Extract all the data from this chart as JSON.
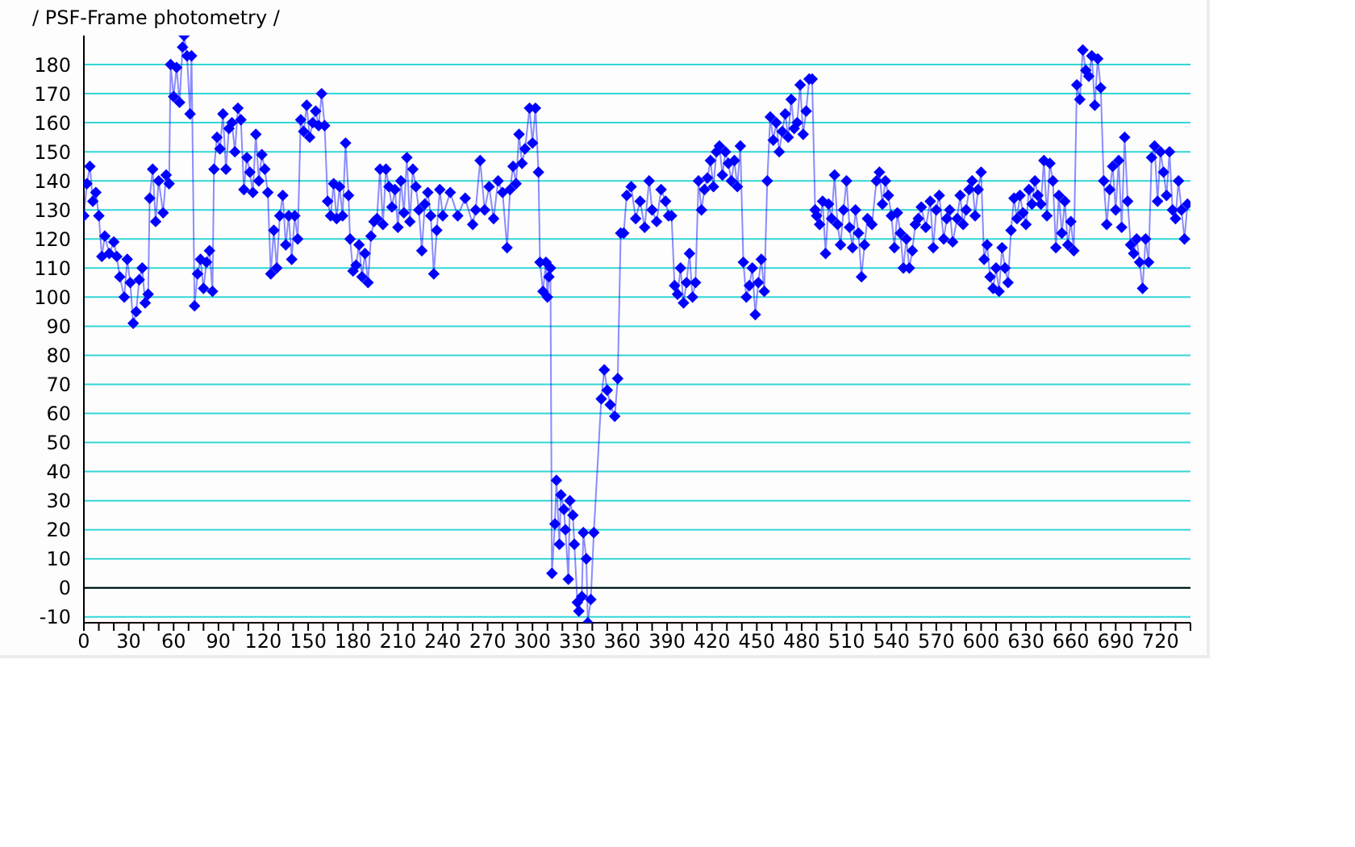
{
  "chart_data": {
    "type": "line",
    "title": "/ PSF-Frame photometry /",
    "series": [
      {
        "color": "#0000ff",
        "x": [
          0,
          2,
          4,
          6,
          8,
          10,
          12,
          14,
          17,
          20,
          22,
          24,
          27,
          29,
          31,
          33,
          35,
          37,
          39,
          41,
          43,
          44,
          46,
          48,
          50,
          53,
          55,
          57,
          58,
          60,
          62,
          64,
          66,
          67,
          69,
          71,
          72,
          74,
          76,
          78,
          80,
          82,
          84,
          86,
          87,
          89,
          91,
          93,
          95,
          97,
          99,
          101,
          103,
          105,
          107,
          109,
          111,
          113,
          115,
          117,
          119,
          121,
          123,
          125,
          127,
          129,
          131,
          133,
          135,
          137,
          139,
          141,
          143,
          145,
          147,
          149,
          151,
          153,
          155,
          157,
          159,
          161,
          163,
          165,
          167,
          169,
          171,
          173,
          175,
          177,
          178,
          180,
          182,
          184,
          186,
          188,
          190,
          192,
          194,
          196,
          198,
          200,
          202,
          204,
          206,
          208,
          210,
          212,
          214,
          216,
          218,
          220,
          222,
          224,
          226,
          228,
          230,
          232,
          234,
          236,
          238,
          240,
          245,
          250,
          255,
          260,
          262,
          265,
          268,
          271,
          274,
          277,
          280,
          283,
          285,
          287,
          289,
          291,
          293,
          295,
          298,
          300,
          302,
          304,
          305,
          307,
          309,
          310,
          311,
          312,
          313,
          315,
          316,
          318,
          319,
          321,
          322,
          324,
          325,
          327,
          328,
          330,
          331,
          333,
          334,
          336,
          337,
          339,
          341,
          346,
          348,
          350,
          352,
          355,
          357,
          359,
          361,
          363,
          366,
          369,
          372,
          375,
          378,
          380,
          383,
          386,
          389,
          391,
          393,
          395,
          397,
          399,
          401,
          403,
          405,
          407,
          409,
          411,
          413,
          415,
          417,
          419,
          421,
          423,
          425,
          427,
          429,
          431,
          433,
          435,
          437,
          439,
          441,
          443,
          445,
          447,
          449,
          451,
          453,
          455,
          457,
          459,
          461,
          463,
          465,
          467,
          469,
          471,
          473,
          475,
          477,
          479,
          481,
          483,
          485,
          487,
          489,
          490,
          492,
          494,
          496,
          498,
          500,
          502,
          504,
          506,
          508,
          510,
          512,
          514,
          516,
          518,
          520,
          522,
          524,
          527,
          530,
          532,
          534,
          536,
          538,
          540,
          542,
          544,
          546,
          548,
          550,
          552,
          554,
          556,
          558,
          560,
          563,
          566,
          568,
          570,
          572,
          575,
          577,
          579,
          581,
          584,
          586,
          588,
          590,
          592,
          594,
          596,
          598,
          600,
          602,
          604,
          606,
          608,
          610,
          612,
          614,
          616,
          618,
          620,
          622,
          624,
          626,
          628,
          630,
          632,
          634,
          636,
          638,
          640,
          642,
          644,
          646,
          648,
          650,
          652,
          654,
          656,
          658,
          660,
          662,
          664,
          666,
          668,
          670,
          672,
          674,
          676,
          678,
          680,
          682,
          684,
          686,
          688,
          690,
          692,
          694,
          696,
          698,
          700,
          702,
          704,
          706,
          708,
          710,
          712,
          714,
          716,
          718,
          720,
          722,
          724,
          726,
          728,
          730,
          732,
          734,
          736,
          738
        ],
        "values": [
          128,
          139,
          145,
          133,
          136,
          128,
          114,
          121,
          115,
          119,
          114,
          107,
          100,
          113,
          105,
          91,
          95,
          106,
          110,
          98,
          101,
          134,
          144,
          126,
          140,
          129,
          142,
          139,
          180,
          169,
          179,
          167,
          186,
          190,
          183,
          163,
          183,
          97,
          108,
          113,
          103,
          112,
          116,
          102,
          144,
          155,
          151,
          163,
          144,
          158,
          160,
          150,
          165,
          161,
          137,
          148,
          143,
          136,
          156,
          140,
          149,
          144,
          136,
          108,
          123,
          110,
          128,
          135,
          118,
          128,
          113,
          128,
          120,
          161,
          157,
          166,
          155,
          160,
          164,
          159,
          170,
          159,
          133,
          128,
          139,
          127,
          138,
          128,
          153,
          135,
          120,
          109,
          111,
          118,
          107,
          115,
          105,
          121,
          126,
          127,
          144,
          125,
          144,
          138,
          131,
          137,
          124,
          140,
          129,
          148,
          126,
          144,
          138,
          130,
          116,
          132,
          136,
          128,
          108,
          123,
          137,
          128,
          136,
          128,
          134,
          125,
          130,
          147,
          130,
          138,
          127,
          140,
          136,
          117,
          137,
          145,
          139,
          156,
          146,
          151,
          165,
          153,
          165,
          143,
          112,
          102,
          112,
          100,
          107,
          110,
          5,
          22,
          37,
          15,
          32,
          27,
          20,
          3,
          30,
          25,
          15,
          -5,
          -8,
          -3,
          19,
          10,
          -12,
          -4,
          19,
          65,
          75,
          68,
          63,
          59,
          72,
          122,
          122,
          135,
          138,
          127,
          133,
          124,
          140,
          130,
          126,
          137,
          133,
          128,
          128,
          104,
          101,
          110,
          98,
          105,
          115,
          100,
          105,
          140,
          130,
          137,
          141,
          147,
          138,
          150,
          152,
          142,
          150,
          146,
          140,
          147,
          138,
          152,
          112,
          100,
          104,
          110,
          94,
          105,
          113,
          102,
          140,
          162,
          154,
          160,
          150,
          157,
          163,
          155,
          168,
          158,
          160,
          173,
          156,
          164,
          175,
          175,
          130,
          128,
          125,
          133,
          115,
          132,
          127,
          142,
          125,
          118,
          130,
          140,
          124,
          117,
          130,
          122,
          107,
          118,
          127,
          125,
          140,
          143,
          132,
          140,
          135,
          128,
          117,
          129,
          122,
          110,
          120,
          110,
          116,
          125,
          127,
          131,
          124,
          133,
          117,
          130,
          135,
          120,
          127,
          130,
          119,
          127,
          135,
          125,
          130,
          137,
          140,
          128,
          137,
          143,
          113,
          118,
          107,
          103,
          110,
          102,
          117,
          110,
          105,
          123,
          134,
          127,
          135,
          129,
          125,
          137,
          132,
          140,
          135,
          132,
          147,
          128,
          146,
          140,
          117,
          135,
          122,
          133,
          118,
          126,
          116,
          173,
          168,
          185,
          178,
          176,
          183,
          166,
          182,
          172,
          140,
          125,
          137,
          145,
          130,
          147,
          124,
          155,
          133,
          118,
          115,
          120,
          112,
          103,
          120,
          112,
          148,
          152,
          133,
          150,
          143,
          135,
          150,
          130,
          127,
          140,
          130,
          120,
          132
        ]
      }
    ],
    "xlim": [
      0,
      740
    ],
    "xticks": [
      0,
      {
        "value": 10,
        "label": null
      },
      {
        "value": 20,
        "label": null
      },
      30,
      {
        "value": 40,
        "label": null
      },
      {
        "value": 50,
        "label": null
      },
      60,
      {
        "value": 70,
        "label": null
      },
      {
        "value": 80,
        "label": null
      },
      90,
      {
        "value": 100,
        "label": null
      },
      {
        "value": 110,
        "label": null
      },
      120,
      {
        "value": 130,
        "label": null
      },
      {
        "value": 140,
        "label": null
      },
      150,
      {
        "value": 160,
        "label": null
      },
      {
        "value": 170,
        "label": null
      },
      180,
      {
        "value": 190,
        "label": null
      },
      {
        "value": 200,
        "label": null
      },
      210,
      {
        "value": 220,
        "label": null
      },
      {
        "value": 230,
        "label": null
      },
      240,
      {
        "value": 250,
        "label": null
      },
      {
        "value": 260,
        "label": null
      },
      270,
      {
        "value": 280,
        "label": null
      },
      {
        "value": 290,
        "label": null
      },
      300,
      {
        "value": 310,
        "label": null
      },
      {
        "value": 320,
        "label": null
      },
      330,
      {
        "value": 340,
        "label": null
      },
      {
        "value": 350,
        "label": null
      },
      360,
      {
        "value": 370,
        "label": null
      },
      {
        "value": 380,
        "label": null
      },
      390,
      {
        "value": 400,
        "label": null
      },
      {
        "value": 410,
        "label": null
      },
      420,
      {
        "value": 430,
        "label": null
      },
      {
        "value": 440,
        "label": null
      },
      450,
      {
        "value": 460,
        "label": null
      },
      {
        "value": 470,
        "label": null
      },
      480,
      {
        "value": 490,
        "label": null
      },
      {
        "value": 500,
        "label": null
      },
      510,
      {
        "value": 520,
        "label": null
      },
      {
        "value": 530,
        "label": null
      },
      540,
      {
        "value": 550,
        "label": null
      },
      {
        "value": 560,
        "label": null
      },
      570,
      {
        "value": 580,
        "label": null
      },
      {
        "value": 590,
        "label": null
      },
      600,
      {
        "value": 610,
        "label": null
      },
      {
        "value": 620,
        "label": null
      },
      630,
      {
        "value": 640,
        "label": null
      },
      {
        "value": 650,
        "label": null
      },
      660,
      {
        "value": 670,
        "label": null
      },
      {
        "value": 680,
        "label": null
      },
      690,
      {
        "value": 700,
        "label": null
      },
      {
        "value": 710,
        "label": null
      },
      720,
      {
        "value": 730,
        "label": null
      },
      {
        "value": 740,
        "label": null
      }
    ],
    "ylim": [
      -12,
      190
    ],
    "yticks": [
      -10,
      0,
      10,
      20,
      30,
      40,
      50,
      60,
      70,
      80,
      90,
      100,
      110,
      120,
      130,
      140,
      150,
      160,
      170,
      180
    ],
    "grid": "y",
    "ref_lines": [
      {
        "axis": "y",
        "value": 0,
        "color": "#000000"
      }
    ],
    "marker": "diamond",
    "line_style": "solid"
  }
}
